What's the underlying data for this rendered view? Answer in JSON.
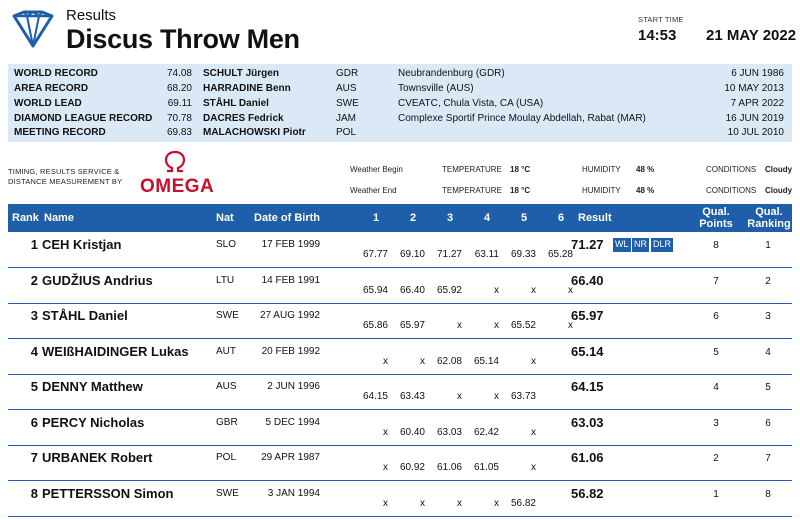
{
  "header": {
    "small_title": "Results",
    "event_title": "Discus Throw Men",
    "start_time_label": "START TIME",
    "start_time": "14:53",
    "date": "21 MAY 2022"
  },
  "records": [
    {
      "label": "WORLD RECORD",
      "value": "74.08",
      "name": "SCHULT Jürgen",
      "nat": "GDR",
      "venue": "Neubrandenburg (GDR)",
      "date": "6 JUN 1986"
    },
    {
      "label": "AREA RECORD",
      "value": "68.20",
      "name": "HARRADINE Benn",
      "nat": "AUS",
      "venue": "Townsville (AUS)",
      "date": "10 MAY 2013"
    },
    {
      "label": "WORLD LEAD",
      "value": "69.11",
      "name": "STÅHL Daniel",
      "nat": "SWE",
      "venue": "CVEATC, Chula Vista, CA (USA)",
      "date": "7 APR 2022"
    },
    {
      "label": "DIAMOND LEAGUE RECORD",
      "value": "70.78",
      "name": "DACRES Fedrick",
      "nat": "JAM",
      "venue": "Complexe Sportif Prince Moulay Abdellah, Rabat (MAR)",
      "date": "16 JUN 2019"
    },
    {
      "label": "MEETING RECORD",
      "value": "69.83",
      "name": "MALACHOWSKI Piotr",
      "nat": "POL",
      "venue": "",
      "date": "10 JUL 2010"
    }
  ],
  "timing": {
    "line1": "TIMING, RESULTS SERVICE &",
    "line2": "DISTANCE MEASUREMENT BY",
    "brand": "OMEGA"
  },
  "weather": {
    "begin": {
      "label": "Weather Begin",
      "temp_label": "TEMPERATURE",
      "temp": "18 °C",
      "hum_label": "HUMIDITY",
      "hum": "48 %",
      "cond_label": "CONDITIONS",
      "cond": "Cloudy"
    },
    "end": {
      "label": "Weather End",
      "temp_label": "TEMPERATURE",
      "temp": "18 °C",
      "hum_label": "HUMIDITY",
      "hum": "48 %",
      "cond_label": "CONDITIONS",
      "cond": "Cloudy"
    }
  },
  "columns": {
    "rank": "Rank",
    "name": "Name",
    "nat": "Nat",
    "dob": "Date of Birth",
    "a1": "1",
    "a2": "2",
    "a3": "3",
    "a4": "4",
    "a5": "5",
    "a6": "6",
    "result": "Result",
    "qual_points_1": "Qual.",
    "qual_points_2": "Points",
    "qual_ranking_1": "Qual.",
    "qual_ranking_2": "Ranking"
  },
  "results": [
    {
      "rank": "1",
      "name": "CEH Kristjan",
      "nat": "SLO",
      "dob": "17 FEB 1999",
      "attempts": [
        "67.77",
        "69.10",
        "71.27",
        "63.11",
        "69.33",
        "65.28"
      ],
      "result": "71.27",
      "badges": [
        "WL",
        "NR",
        "DLR"
      ],
      "qual_points": "8",
      "qual_ranking": "1"
    },
    {
      "rank": "2",
      "name": "GUDŽIUS Andrius",
      "nat": "LTU",
      "dob": "14 FEB 1991",
      "attempts": [
        "65.94",
        "66.40",
        "65.92",
        "x",
        "x",
        "x"
      ],
      "result": "66.40",
      "badges": [],
      "qual_points": "7",
      "qual_ranking": "2"
    },
    {
      "rank": "3",
      "name": "STÅHL Daniel",
      "nat": "SWE",
      "dob": "27 AUG 1992",
      "attempts": [
        "65.86",
        "65.97",
        "x",
        "x",
        "65.52",
        "x"
      ],
      "result": "65.97",
      "badges": [],
      "qual_points": "6",
      "qual_ranking": "3"
    },
    {
      "rank": "4",
      "name": "WEIßHAIDINGER Lukas",
      "nat": "AUT",
      "dob": "20 FEB 1992",
      "attempts": [
        "x",
        "x",
        "62.08",
        "65.14",
        "x",
        ""
      ],
      "result": "65.14",
      "badges": [],
      "qual_points": "5",
      "qual_ranking": "4"
    },
    {
      "rank": "5",
      "name": "DENNY Matthew",
      "nat": "AUS",
      "dob": "2 JUN 1996",
      "attempts": [
        "64.15",
        "63.43",
        "x",
        "x",
        "63.73",
        ""
      ],
      "result": "64.15",
      "badges": [],
      "qual_points": "4",
      "qual_ranking": "5"
    },
    {
      "rank": "6",
      "name": "PERCY Nicholas",
      "nat": "GBR",
      "dob": "5 DEC 1994",
      "attempts": [
        "x",
        "60.40",
        "63.03",
        "62.42",
        "x",
        ""
      ],
      "result": "63.03",
      "badges": [],
      "qual_points": "3",
      "qual_ranking": "6"
    },
    {
      "rank": "7",
      "name": "URBANEK Robert",
      "nat": "POL",
      "dob": "29 APR 1987",
      "attempts": [
        "x",
        "60.92",
        "61.06",
        "61.05",
        "x",
        ""
      ],
      "result": "61.06",
      "badges": [],
      "qual_points": "2",
      "qual_ranking": "7"
    },
    {
      "rank": "8",
      "name": "PETTERSSON Simon",
      "nat": "SWE",
      "dob": "3 JAN 1994",
      "attempts": [
        "x",
        "x",
        "x",
        "x",
        "56.82",
        ""
      ],
      "result": "56.82",
      "badges": [],
      "qual_points": "1",
      "qual_ranking": "8"
    }
  ],
  "colors": {
    "header_blue": "#1f5ea8",
    "record_bg": "#dbe9f7",
    "omega_red": "#c8102e"
  },
  "icons": {
    "logo": "diamond-league-logo-icon",
    "omega": "omega-symbol-icon"
  }
}
